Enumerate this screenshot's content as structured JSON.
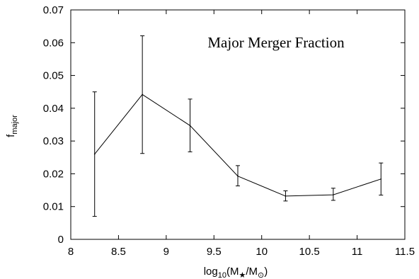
{
  "chart_data": {
    "type": "line",
    "title": "",
    "annotation": "Major Merger Fraction",
    "xlabel": {
      "pre": "log",
      "sub1": "10",
      "mid1": "(M",
      "sub2": "★",
      "mid2": "/M",
      "sub3": "⊙",
      "post": ")"
    },
    "ylabel": {
      "main": "f",
      "sub": "major"
    },
    "xlim": [
      8,
      11.5
    ],
    "ylim": [
      0,
      0.07
    ],
    "xticks": [
      "8",
      "8.5",
      "9",
      "9.5",
      "10",
      "10.5",
      "11",
      "11.5"
    ],
    "xtick_values": [
      8,
      8.5,
      9,
      9.5,
      10,
      10.5,
      11,
      11.5
    ],
    "yticks": [
      "0",
      "0.01",
      "0.02",
      "0.03",
      "0.04",
      "0.05",
      "0.06",
      "0.07"
    ],
    "ytick_values": [
      0,
      0.01,
      0.02,
      0.03,
      0.04,
      0.05,
      0.06,
      0.07
    ],
    "grid": false,
    "series": [
      {
        "x": [
          8.25,
          8.75,
          9.25,
          9.75,
          10.25,
          10.75,
          11.25
        ],
        "y": [
          0.026,
          0.0442,
          0.0347,
          0.0193,
          0.0132,
          0.0136,
          0.0184
        ],
        "y_err_low": [
          0.007,
          0.0262,
          0.0267,
          0.0163,
          0.0117,
          0.0119,
          0.0135
        ],
        "y_err_high": [
          0.045,
          0.0621,
          0.0428,
          0.0225,
          0.0148,
          0.0156,
          0.0233
        ]
      }
    ],
    "colors": {
      "line": "#000000",
      "axes": "#000000"
    }
  }
}
